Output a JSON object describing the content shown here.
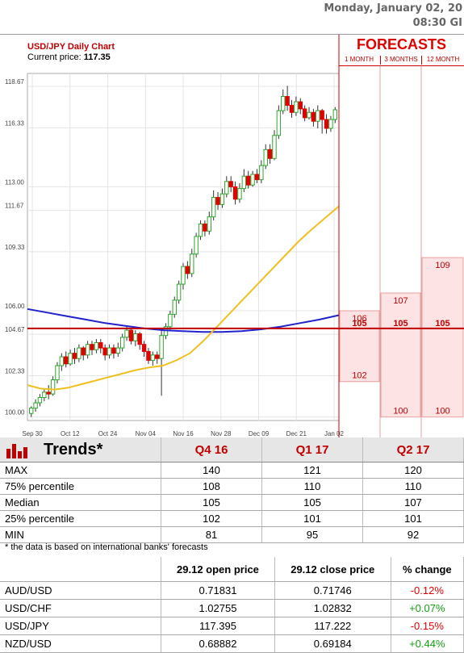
{
  "header": {
    "date": "Monday, January 02, 20",
    "time": "08:30 GI"
  },
  "chart_data": {
    "type": "candlestick",
    "title": "USD/JPY Daily Chart",
    "current_price_label": "Current price:",
    "current_price": "117.35",
    "y_ticks": [
      "118.67",
      "116.33",
      "113.00",
      "111.67",
      "109.33",
      "106.00",
      "104.67",
      "102.33",
      "100.00"
    ],
    "x_ticks": [
      "Sep 30",
      "Oct 12",
      "Oct 24",
      "Nov 04",
      "Nov 16",
      "Nov 28",
      "Dec 09",
      "Dec 21",
      "Jan 02"
    ],
    "ylim": [
      99.8,
      119.4
    ],
    "candles": [
      [
        100.2,
        100.5,
        100.0,
        100.6
      ],
      [
        100.5,
        100.8,
        100.3,
        101.0
      ],
      [
        100.8,
        101.1,
        100.6,
        101.3
      ],
      [
        101.1,
        101.4,
        100.9,
        101.6
      ],
      [
        101.4,
        101.3,
        101.0,
        101.8
      ],
      [
        101.3,
        102.1,
        101.2,
        102.3
      ],
      [
        102.1,
        102.9,
        101.9,
        103.1
      ],
      [
        102.9,
        103.4,
        102.6,
        103.6
      ],
      [
        103.4,
        103.0,
        102.8,
        103.7
      ],
      [
        103.0,
        103.6,
        102.9,
        103.8
      ],
      [
        103.6,
        103.3,
        103.0,
        103.9
      ],
      [
        103.3,
        103.9,
        103.1,
        104.1
      ],
      [
        103.9,
        103.5,
        103.2,
        104.0
      ],
      [
        103.5,
        104.1,
        103.3,
        104.3
      ],
      [
        104.1,
        103.8,
        103.5,
        104.3
      ],
      [
        103.8,
        104.2,
        103.6,
        104.4
      ],
      [
        104.2,
        103.9,
        103.6,
        104.4
      ],
      [
        103.9,
        103.5,
        103.2,
        104.1
      ],
      [
        103.5,
        103.9,
        103.3,
        104.1
      ],
      [
        103.9,
        103.6,
        103.3,
        104.1
      ],
      [
        103.6,
        103.9,
        103.4,
        104.2
      ],
      [
        103.9,
        104.5,
        103.7,
        104.7
      ],
      [
        104.5,
        104.9,
        104.3,
        105.1
      ],
      [
        104.9,
        104.3,
        104.1,
        105.0
      ],
      [
        104.3,
        104.7,
        104.0,
        104.9
      ],
      [
        104.7,
        104.1,
        103.8,
        104.8
      ],
      [
        104.1,
        103.7,
        103.4,
        104.3
      ],
      [
        103.7,
        103.2,
        103.0,
        103.9
      ],
      [
        103.2,
        103.5,
        102.9,
        103.7
      ],
      [
        103.5,
        103.3,
        103.0,
        103.7
      ],
      [
        103.3,
        104.6,
        101.2,
        105.0
      ],
      [
        104.6,
        105.1,
        104.4,
        105.3
      ],
      [
        105.1,
        105.8,
        104.9,
        106.0
      ],
      [
        105.8,
        106.6,
        105.6,
        106.8
      ],
      [
        106.6,
        107.5,
        106.4,
        107.7
      ],
      [
        107.5,
        108.5,
        107.2,
        108.7
      ],
      [
        108.5,
        108.1,
        107.8,
        108.8
      ],
      [
        108.1,
        109.2,
        107.9,
        109.5
      ],
      [
        109.2,
        110.2,
        109.0,
        110.4
      ],
      [
        110.2,
        110.9,
        110.0,
        111.1
      ],
      [
        110.9,
        110.5,
        110.2,
        111.1
      ],
      [
        110.5,
        111.3,
        110.3,
        111.6
      ],
      [
        111.3,
        112.4,
        111.1,
        112.8
      ],
      [
        112.4,
        112.0,
        111.7,
        112.7
      ],
      [
        112.0,
        112.6,
        111.8,
        112.9
      ],
      [
        112.6,
        113.3,
        112.4,
        113.6
      ],
      [
        113.3,
        113.0,
        112.7,
        113.6
      ],
      [
        113.0,
        112.3,
        112.0,
        113.3
      ],
      [
        112.3,
        112.9,
        112.1,
        113.2
      ],
      [
        112.9,
        113.6,
        112.7,
        114.0
      ],
      [
        113.6,
        113.1,
        112.9,
        113.9
      ],
      [
        113.1,
        113.7,
        113.0,
        113.9
      ],
      [
        113.7,
        113.4,
        113.2,
        114.0
      ],
      [
        113.4,
        114.2,
        113.2,
        114.5
      ],
      [
        114.2,
        115.1,
        114.0,
        115.4
      ],
      [
        115.1,
        114.6,
        114.3,
        115.4
      ],
      [
        114.6,
        115.9,
        114.5,
        116.2
      ],
      [
        115.9,
        117.3,
        115.7,
        117.6
      ],
      [
        117.3,
        118.1,
        117.1,
        118.5
      ],
      [
        118.1,
        117.6,
        117.3,
        118.7
      ],
      [
        117.6,
        117.2,
        116.9,
        117.9
      ],
      [
        117.2,
        117.8,
        117.0,
        118.1
      ],
      [
        117.8,
        117.4,
        117.1,
        118.0
      ],
      [
        117.4,
        116.9,
        116.7,
        117.6
      ],
      [
        116.9,
        117.2,
        116.8,
        117.5
      ],
      [
        117.2,
        116.7,
        116.4,
        117.4
      ],
      [
        116.7,
        117.3,
        116.3,
        117.6
      ],
      [
        117.3,
        116.8,
        116.0,
        117.4
      ],
      [
        116.8,
        116.3,
        116.0,
        117.1
      ],
      [
        116.3,
        116.8,
        116.1,
        117.0
      ],
      [
        116.8,
        117.35,
        116.6,
        117.5
      ]
    ],
    "ma_blue": [
      106.1,
      105.9,
      105.7,
      105.5,
      105.3,
      105.15,
      105.0,
      104.9,
      104.85,
      104.8,
      104.8,
      104.85,
      104.95,
      105.1,
      105.3,
      105.5,
      105.75
    ],
    "ma_yellow": [
      101.8,
      101.6,
      101.55,
      101.65,
      101.85,
      102.05,
      102.25,
      102.45,
      102.65,
      102.8,
      102.9,
      103.2,
      103.6,
      104.3,
      105.1,
      105.9,
      106.7,
      107.5,
      108.3,
      109.1,
      109.9,
      110.6,
      111.25,
      111.9
    ],
    "forecasts": {
      "title": "FORECASTS",
      "columns": [
        "1 MONTH",
        "3 MONTHS",
        "12 MONTH"
      ],
      "col1": {
        "high": "106",
        "mid": "105",
        "low": "102",
        "high_val": 106,
        "mid_val": 105,
        "low_val": 102
      },
      "col2": {
        "high": "107",
        "mid": "105",
        "low": "100",
        "high_val": 107,
        "mid_val": 105,
        "low_val": 100
      },
      "col3": {
        "high": "109",
        "mid": "105",
        "low": "100",
        "high_val": 109,
        "mid_val": 105,
        "low_val": 100
      }
    },
    "colors": {
      "up": "#2ea62e",
      "down": "#e00000",
      "ma_blue": "#2222cc",
      "ma_yellow": "#f0c020",
      "forecast_fill": "#fde3e3",
      "forecast_line": "#c00000"
    }
  },
  "trends": {
    "title": "Trends*",
    "periods": [
      "Q4 16",
      "Q1 17",
      "Q2 17"
    ],
    "rows": [
      {
        "label": "MAX",
        "values": [
          "140",
          "121",
          "120"
        ]
      },
      {
        "label": "75% percentile",
        "values": [
          "108",
          "110",
          "110"
        ]
      },
      {
        "label": "Median",
        "values": [
          "105",
          "105",
          "107"
        ]
      },
      {
        "label": "25% percentile",
        "values": [
          "102",
          "101",
          "101"
        ]
      },
      {
        "label": "MIN",
        "values": [
          "81",
          "95",
          "92"
        ]
      }
    ],
    "note": "* the data is based on international banks' forecasts"
  },
  "fx": {
    "headers": [
      "",
      "29.12 open price",
      "29.12 close price",
      "% change"
    ],
    "rows": [
      {
        "pair": "AUD/USD",
        "open": "0.71831",
        "close": "0.71746",
        "change": "-0.12%",
        "dir": "neg"
      },
      {
        "pair": "USD/CHF",
        "open": "1.02755",
        "close": "1.02832",
        "change": "+0.07%",
        "dir": "pos"
      },
      {
        "pair": "USD/JPY",
        "open": "117.395",
        "close": "117.222",
        "change": "-0.15%",
        "dir": "neg"
      },
      {
        "pair": "NZD/USD",
        "open": "0.68882",
        "close": "0.69184",
        "change": "+0.44%",
        "dir": "pos"
      }
    ]
  }
}
